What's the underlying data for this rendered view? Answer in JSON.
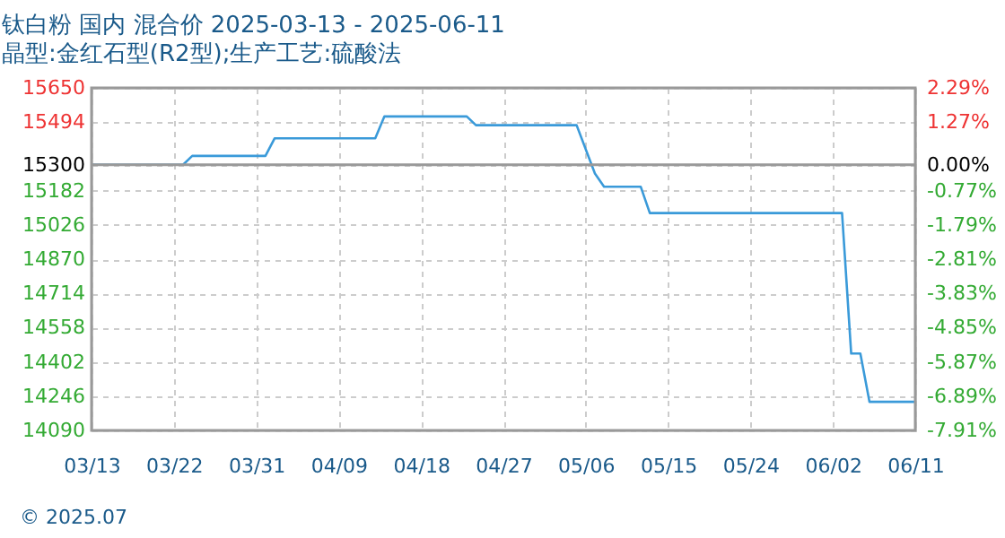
{
  "chart_data": {
    "type": "line",
    "title": "钛白粉 国内 混合价 2025-03-13 - 2025-06-11",
    "subtitle": "晶型:金红石型(R2型);生产工艺:硫酸法",
    "x": [
      "2025-03-13",
      "2025-03-23",
      "2025-03-24",
      "2025-04-01",
      "2025-04-02",
      "2025-04-13",
      "2025-04-14",
      "2025-04-23",
      "2025-04-24",
      "2025-05-05",
      "2025-05-07",
      "2025-05-08",
      "2025-05-12",
      "2025-05-13",
      "2025-06-03",
      "2025-06-04",
      "2025-06-05",
      "2025-06-06",
      "2025-06-11"
    ],
    "series": [
      {
        "color": "#3a9ad9",
        "values": [
          15300,
          15300,
          15340,
          15340,
          15420,
          15420,
          15520,
          15520,
          15480,
          15480,
          15260,
          15200,
          15200,
          15080,
          15080,
          14440,
          14440,
          14220,
          14220
        ]
      }
    ],
    "xlim": [
      "2025-03-13",
      "2025-06-11"
    ],
    "xticks": [
      {
        "value": "2025-03-13",
        "label": "03/13"
      },
      {
        "value": "2025-03-22",
        "label": "03/22"
      },
      {
        "value": "2025-03-31",
        "label": "03/31"
      },
      {
        "value": "2025-04-09",
        "label": "04/09"
      },
      {
        "value": "2025-04-18",
        "label": "04/18"
      },
      {
        "value": "2025-04-27",
        "label": "04/27"
      },
      {
        "value": "2025-05-06",
        "label": "05/06"
      },
      {
        "value": "2025-05-15",
        "label": "05/15"
      },
      {
        "value": "2025-05-24",
        "label": "05/24"
      },
      {
        "value": "2025-06-02",
        "label": "06/02"
      },
      {
        "value": "2025-06-11",
        "label": "06/11"
      }
    ],
    "ylim": [
      14090,
      15650
    ],
    "yticks": [
      14090,
      14246,
      14402,
      14558,
      14714,
      14870,
      15026,
      15182,
      15300,
      15494,
      15650
    ],
    "y2lim": [
      -7.91,
      2.29
    ],
    "y2ticks": [
      {
        "value": -7.91,
        "label": "-7.91%"
      },
      {
        "value": -6.89,
        "label": "-6.89%"
      },
      {
        "value": -5.87,
        "label": "-5.87%"
      },
      {
        "value": -4.85,
        "label": "-4.85%"
      },
      {
        "value": -3.83,
        "label": "-3.83%"
      },
      {
        "value": -2.81,
        "label": "-2.81%"
      },
      {
        "value": -1.79,
        "label": "-1.79%"
      },
      {
        "value": -0.77,
        "label": "-0.77%"
      },
      {
        "value": 0,
        "label": "0.00%"
      },
      {
        "value": 1.27,
        "label": "1.27%"
      },
      {
        "value": 2.29,
        "label": "2.29%"
      }
    ],
    "ref_lines": [
      {
        "axis": "y",
        "value": 15300,
        "color": "#999999",
        "line_style": "solid"
      }
    ],
    "grid": true,
    "marker": "none",
    "line_style": "solid",
    "annotations": [
      "© 2025.07"
    ]
  }
}
